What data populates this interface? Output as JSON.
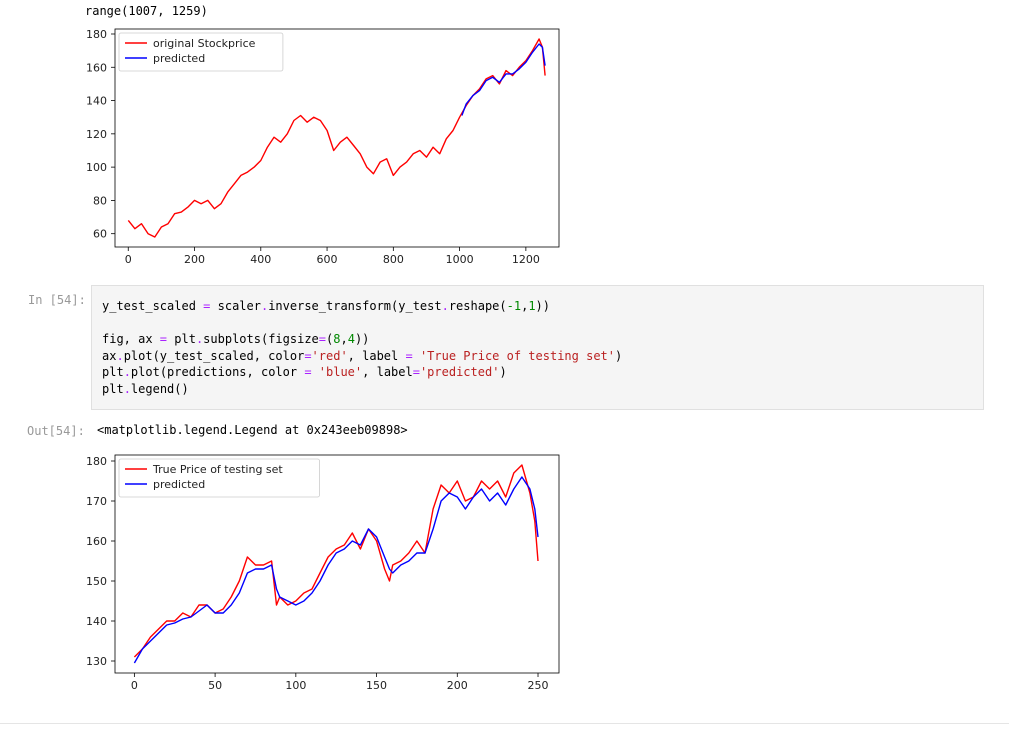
{
  "output1": {
    "text": "range(1007, 1259)"
  },
  "cell": {
    "in_prompt": "In [54]:",
    "code_lines": [
      [
        [
          "y_test_scaled ",
          "plain"
        ],
        [
          "=",
          "op"
        ],
        [
          " scaler",
          "plain"
        ],
        [
          ".",
          "op"
        ],
        [
          "inverse_transform(y_test",
          "plain"
        ],
        [
          ".",
          "op"
        ],
        [
          "reshape(",
          "plain"
        ],
        [
          "-1",
          "num"
        ],
        [
          ",",
          "plain"
        ],
        [
          "1",
          "num"
        ],
        [
          "))",
          "plain"
        ]
      ],
      [],
      [
        [
          "fig, ax ",
          "plain"
        ],
        [
          "=",
          "op"
        ],
        [
          " plt",
          "plain"
        ],
        [
          ".",
          "op"
        ],
        [
          "subplots(figsize",
          "plain"
        ],
        [
          "=",
          "op"
        ],
        [
          "(",
          "plain"
        ],
        [
          "8",
          "num"
        ],
        [
          ",",
          "plain"
        ],
        [
          "4",
          "num"
        ],
        [
          "))",
          "plain"
        ]
      ],
      [
        [
          "ax",
          "plain"
        ],
        [
          ".",
          "op"
        ],
        [
          "plot(y_test_scaled, color",
          "plain"
        ],
        [
          "=",
          "op"
        ],
        [
          "'red'",
          "str"
        ],
        [
          ", label ",
          "plain"
        ],
        [
          "=",
          "op"
        ],
        [
          " ",
          "plain"
        ],
        [
          "'True Price of testing set'",
          "str"
        ],
        [
          ")",
          "plain"
        ]
      ],
      [
        [
          "plt",
          "plain"
        ],
        [
          ".",
          "op"
        ],
        [
          "plot(predictions, color ",
          "plain"
        ],
        [
          "=",
          "op"
        ],
        [
          " ",
          "plain"
        ],
        [
          "'blue'",
          "str"
        ],
        [
          ", label",
          "plain"
        ],
        [
          "=",
          "op"
        ],
        [
          "'predicted'",
          "str"
        ],
        [
          ")",
          "plain"
        ]
      ],
      [
        [
          "plt",
          "plain"
        ],
        [
          ".",
          "op"
        ],
        [
          "legend()",
          "plain"
        ]
      ]
    ],
    "out_prompt": "Out[54]:",
    "output_text": "<matplotlib.legend.Legend at 0x243eeb09898>"
  },
  "chart_data": [
    {
      "type": "line",
      "xlim": [
        -40,
        1300
      ],
      "ylim": [
        52,
        183
      ],
      "xticks": [
        0,
        200,
        400,
        600,
        800,
        1000,
        1200
      ],
      "yticks": [
        60,
        80,
        100,
        120,
        140,
        160,
        180
      ],
      "grid": false,
      "legend_position": "top-left",
      "series": [
        {
          "name": "original Stockprice",
          "color": "#ff0000",
          "x": [
            0,
            20,
            40,
            60,
            80,
            100,
            120,
            140,
            160,
            180,
            200,
            220,
            240,
            260,
            280,
            300,
            320,
            340,
            360,
            380,
            400,
            420,
            440,
            460,
            480,
            500,
            520,
            540,
            560,
            580,
            600,
            620,
            640,
            660,
            680,
            700,
            720,
            740,
            760,
            780,
            800,
            820,
            840,
            860,
            880,
            900,
            920,
            940,
            960,
            980,
            1000,
            1020,
            1040,
            1060,
            1080,
            1100,
            1120,
            1140,
            1160,
            1180,
            1200,
            1220,
            1240,
            1250,
            1258
          ],
          "y": [
            68,
            63,
            66,
            60,
            58,
            64,
            66,
            72,
            73,
            76,
            80,
            78,
            80,
            75,
            78,
            85,
            90,
            95,
            97,
            100,
            104,
            112,
            118,
            115,
            120,
            128,
            131,
            127,
            130,
            128,
            122,
            110,
            115,
            118,
            113,
            108,
            100,
            96,
            103,
            105,
            95,
            100,
            103,
            108,
            110,
            106,
            112,
            108,
            117,
            122,
            130,
            137,
            143,
            147,
            153,
            155,
            150,
            158,
            155,
            160,
            164,
            170,
            177,
            172,
            155
          ]
        },
        {
          "name": "predicted",
          "color": "#0000ff",
          "x": [
            1007,
            1020,
            1040,
            1060,
            1080,
            1100,
            1120,
            1140,
            1160,
            1180,
            1200,
            1220,
            1240,
            1250,
            1258
          ],
          "y": [
            131,
            138,
            143,
            146,
            152,
            154,
            151,
            156,
            156,
            159,
            163,
            169,
            174,
            172,
            161
          ]
        }
      ]
    },
    {
      "type": "line",
      "xlim": [
        -12,
        263
      ],
      "ylim": [
        127,
        181.5
      ],
      "xticks": [
        0,
        50,
        100,
        150,
        200,
        250
      ],
      "yticks": [
        130,
        140,
        150,
        160,
        170,
        180
      ],
      "grid": false,
      "legend_position": "top-left",
      "series": [
        {
          "name": "True Price of testing set",
          "color": "#ff0000",
          "x": [
            0,
            5,
            10,
            15,
            20,
            25,
            30,
            35,
            40,
            45,
            50,
            55,
            60,
            65,
            70,
            75,
            80,
            85,
            88,
            90,
            95,
            100,
            105,
            110,
            115,
            120,
            125,
            130,
            135,
            140,
            145,
            150,
            155,
            158,
            160,
            165,
            170,
            175,
            180,
            185,
            190,
            195,
            200,
            205,
            210,
            215,
            220,
            225,
            230,
            235,
            240,
            245,
            248,
            250
          ],
          "y": [
            131,
            133,
            136,
            138,
            140,
            140,
            142,
            141,
            144,
            144,
            142,
            143,
            146,
            150,
            156,
            154,
            154,
            155,
            144,
            146,
            144,
            145,
            147,
            148,
            152,
            156,
            158,
            159,
            162,
            158,
            163,
            160,
            153,
            150,
            154,
            155,
            157,
            160,
            157,
            168,
            174,
            172,
            175,
            170,
            171,
            175,
            173,
            175,
            171,
            177,
            179,
            172,
            165,
            155
          ]
        },
        {
          "name": "predicted",
          "color": "#0000ff",
          "x": [
            0,
            5,
            10,
            15,
            20,
            25,
            30,
            35,
            40,
            45,
            50,
            55,
            60,
            65,
            70,
            75,
            80,
            85,
            88,
            90,
            95,
            100,
            105,
            110,
            115,
            120,
            125,
            130,
            135,
            140,
            145,
            150,
            155,
            158,
            160,
            165,
            170,
            175,
            180,
            185,
            190,
            195,
            200,
            205,
            210,
            215,
            220,
            225,
            230,
            235,
            240,
            245,
            248,
            250
          ],
          "y": [
            129.5,
            133,
            135,
            137,
            139,
            139.5,
            140.5,
            141,
            142.5,
            144,
            142,
            142,
            144,
            147,
            152,
            153,
            153,
            154,
            148,
            146,
            145,
            144,
            145,
            147,
            150,
            154,
            157,
            158,
            160,
            159,
            163,
            161,
            156,
            153,
            152,
            154,
            155,
            157,
            157,
            163,
            170,
            172,
            171,
            168,
            171,
            173,
            170,
            172,
            169,
            173,
            176,
            173,
            168,
            161
          ]
        }
      ]
    }
  ]
}
